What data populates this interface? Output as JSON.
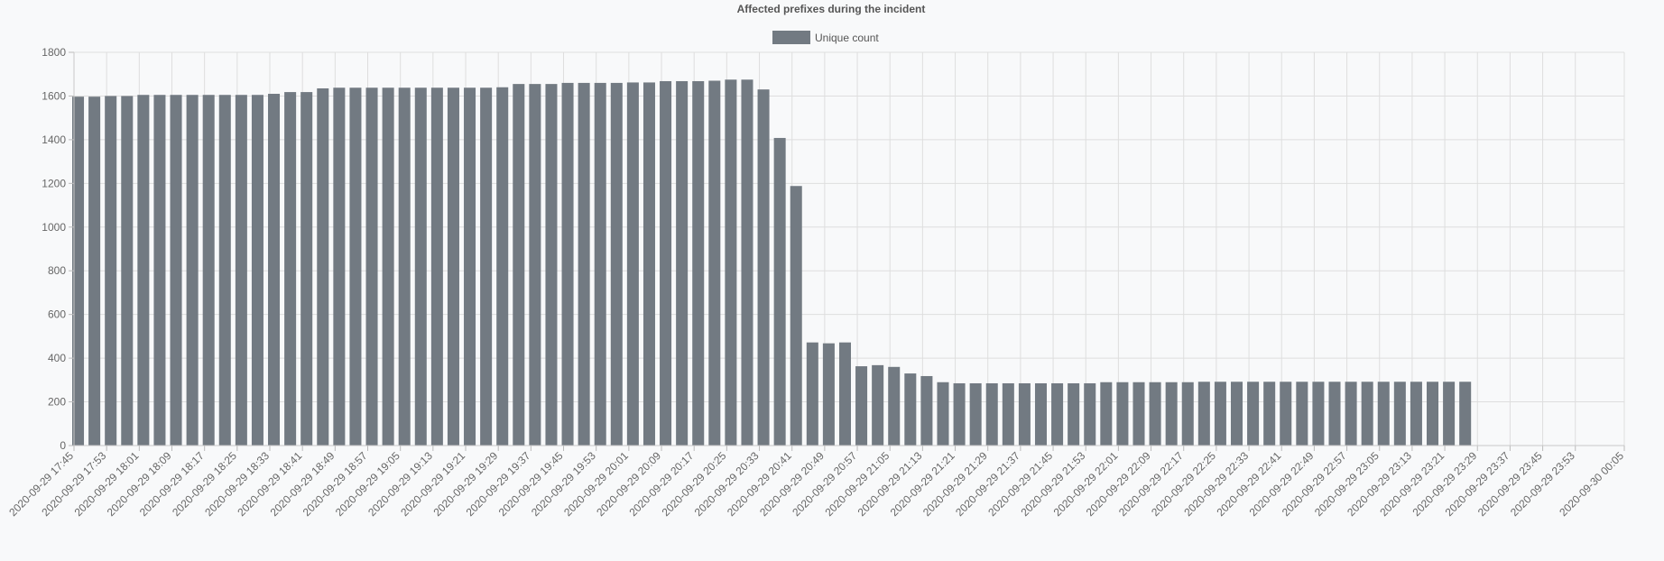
{
  "chart_data": {
    "type": "bar",
    "title": "Affected prefixes during the incident",
    "legend": {
      "position": "top",
      "items": [
        {
          "label": "Unique count",
          "color": "#727a82"
        }
      ]
    },
    "xlabel": "",
    "ylabel": "",
    "ylim": [
      0,
      1800
    ],
    "yticks": [
      0,
      200,
      400,
      600,
      800,
      1000,
      1200,
      1400,
      1600,
      1800
    ],
    "grid": true,
    "bar_color": "#727a82",
    "x_start": "2020-09-29 17:45",
    "x_end": "2020-09-30 00:05",
    "tick_labels": [
      "2020-09-29 17:45",
      "2020-09-29 17:53",
      "2020-09-29 18:01",
      "2020-09-29 18:09",
      "2020-09-29 18:17",
      "2020-09-29 18:25",
      "2020-09-29 18:33",
      "2020-09-29 18:41",
      "2020-09-29 18:49",
      "2020-09-29 18:57",
      "2020-09-29 19:05",
      "2020-09-29 19:13",
      "2020-09-29 19:21",
      "2020-09-29 19:29",
      "2020-09-29 19:37",
      "2020-09-29 19:45",
      "2020-09-29 19:53",
      "2020-09-29 20:01",
      "2020-09-29 20:09",
      "2020-09-29 20:17",
      "2020-09-29 20:25",
      "2020-09-29 20:33",
      "2020-09-29 20:41",
      "2020-09-29 20:49",
      "2020-09-29 20:57",
      "2020-09-29 21:05",
      "2020-09-29 21:13",
      "2020-09-29 21:21",
      "2020-09-29 21:29",
      "2020-09-29 21:37",
      "2020-09-29 21:45",
      "2020-09-29 21:53",
      "2020-09-29 22:01",
      "2020-09-29 22:09",
      "2020-09-29 22:17",
      "2020-09-29 22:25",
      "2020-09-29 22:33",
      "2020-09-29 22:41",
      "2020-09-29 22:49",
      "2020-09-29 22:57",
      "2020-09-29 23:05",
      "2020-09-29 23:13",
      "2020-09-29 23:21",
      "2020-09-29 23:29",
      "2020-09-29 23:37",
      "2020-09-29 23:45",
      "2020-09-29 23:53",
      "2020-09-30 00:05"
    ],
    "series": [
      {
        "name": "Unique count",
        "x": [
          "2020-09-29 17:46",
          "2020-09-29 17:50",
          "2020-09-29 17:54",
          "2020-09-29 17:58",
          "2020-09-29 18:02",
          "2020-09-29 18:06",
          "2020-09-29 18:10",
          "2020-09-29 18:14",
          "2020-09-29 18:18",
          "2020-09-29 18:22",
          "2020-09-29 18:26",
          "2020-09-29 18:30",
          "2020-09-29 18:34",
          "2020-09-29 18:38",
          "2020-09-29 18:42",
          "2020-09-29 18:46",
          "2020-09-29 18:50",
          "2020-09-29 18:54",
          "2020-09-29 18:58",
          "2020-09-29 19:02",
          "2020-09-29 19:06",
          "2020-09-29 19:10",
          "2020-09-29 19:14",
          "2020-09-29 19:18",
          "2020-09-29 19:22",
          "2020-09-29 19:26",
          "2020-09-29 19:30",
          "2020-09-29 19:34",
          "2020-09-29 19:38",
          "2020-09-29 19:42",
          "2020-09-29 19:46",
          "2020-09-29 19:50",
          "2020-09-29 19:54",
          "2020-09-29 19:58",
          "2020-09-29 20:02",
          "2020-09-29 20:06",
          "2020-09-29 20:10",
          "2020-09-29 20:14",
          "2020-09-29 20:18",
          "2020-09-29 20:22",
          "2020-09-29 20:26",
          "2020-09-29 20:30",
          "2020-09-29 20:34",
          "2020-09-29 20:38",
          "2020-09-29 20:42",
          "2020-09-29 20:46",
          "2020-09-29 20:50",
          "2020-09-29 20:54",
          "2020-09-29 20:58",
          "2020-09-29 21:02",
          "2020-09-29 21:06",
          "2020-09-29 21:10",
          "2020-09-29 21:14",
          "2020-09-29 21:18",
          "2020-09-29 21:22",
          "2020-09-29 21:26",
          "2020-09-29 21:30",
          "2020-09-29 21:34",
          "2020-09-29 21:38",
          "2020-09-29 21:42",
          "2020-09-29 21:46",
          "2020-09-29 21:50",
          "2020-09-29 21:54",
          "2020-09-29 21:58",
          "2020-09-29 22:02",
          "2020-09-29 22:06",
          "2020-09-29 22:10",
          "2020-09-29 22:14",
          "2020-09-29 22:18",
          "2020-09-29 22:22",
          "2020-09-29 22:26",
          "2020-09-29 22:30",
          "2020-09-29 22:34",
          "2020-09-29 22:38",
          "2020-09-29 22:42",
          "2020-09-29 22:46",
          "2020-09-29 22:50",
          "2020-09-29 22:54",
          "2020-09-29 22:58",
          "2020-09-29 23:02",
          "2020-09-29 23:06",
          "2020-09-29 23:10",
          "2020-09-29 23:14",
          "2020-09-29 23:18",
          "2020-09-29 23:22",
          "2020-09-29 23:26"
        ],
        "values": [
          1597,
          1597,
          1600,
          1600,
          1605,
          1605,
          1605,
          1605,
          1605,
          1605,
          1605,
          1605,
          1610,
          1618,
          1618,
          1635,
          1638,
          1638,
          1638,
          1638,
          1638,
          1638,
          1638,
          1638,
          1638,
          1638,
          1640,
          1655,
          1655,
          1655,
          1660,
          1660,
          1660,
          1660,
          1662,
          1662,
          1668,
          1668,
          1668,
          1670,
          1675,
          1675,
          1630,
          1408,
          1188,
          472,
          468,
          472,
          363,
          368,
          360,
          330,
          318,
          290,
          285,
          285,
          285,
          285,
          285,
          285,
          285,
          285,
          285,
          290,
          290,
          290,
          290,
          290,
          290,
          292,
          292,
          292,
          292,
          292,
          292,
          292,
          292,
          292,
          292,
          292,
          292,
          292,
          292,
          292,
          292,
          292
        ]
      }
    ]
  }
}
